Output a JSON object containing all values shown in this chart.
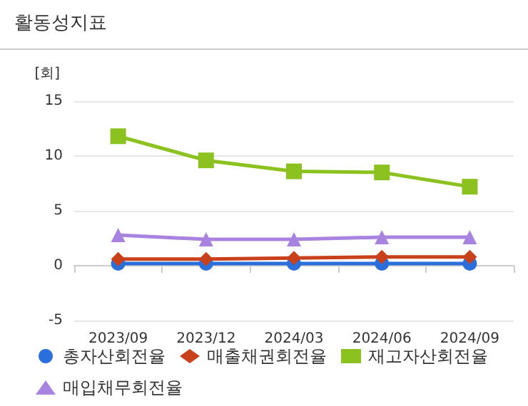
{
  "chart_data": {
    "type": "line",
    "title": "활동성지표",
    "ylabel": "[회]",
    "categories": [
      "2023/09",
      "2023/12",
      "2024/03",
      "2024/06",
      "2024/09"
    ],
    "series": [
      {
        "name": "총자산회전율",
        "color": "#2a6fdb",
        "marker": "circle",
        "values": [
          0.2,
          0.2,
          0.2,
          0.2,
          0.2
        ]
      },
      {
        "name": "매출채권회전율",
        "color": "#c9411a",
        "marker": "diamond",
        "values": [
          0.6,
          0.6,
          0.7,
          0.8,
          0.8
        ]
      },
      {
        "name": "재고자산회전율",
        "color": "#8cc21f",
        "marker": "square",
        "values": [
          11.8,
          9.6,
          8.6,
          8.5,
          7.2
        ]
      },
      {
        "name": "매입채무회전율",
        "color": "#a983e0",
        "marker": "triangle",
        "values": [
          2.8,
          2.4,
          2.4,
          2.6,
          2.6
        ]
      }
    ],
    "ylim": [
      -5,
      15
    ],
    "yticks": [
      -5,
      0,
      5,
      10,
      15
    ],
    "grid": "y",
    "legend": "bottom"
  }
}
